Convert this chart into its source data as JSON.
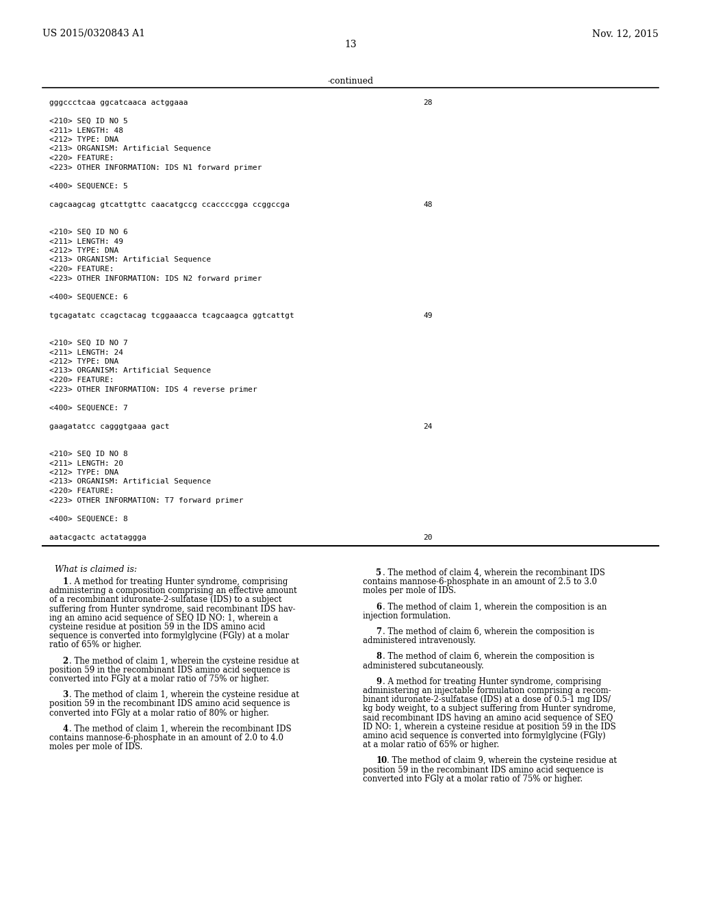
{
  "bg_color": "#ffffff",
  "header_left": "US 2015/0320843 A1",
  "header_right": "Nov. 12, 2015",
  "page_number": "13",
  "continued_label": "-continued",
  "mono_lines": [
    [
      "gggccctcaa ggcatcaaca actggaaa",
      "28"
    ],
    [
      "",
      ""
    ],
    [
      "<210> SEQ ID NO 5",
      ""
    ],
    [
      "<211> LENGTH: 48",
      ""
    ],
    [
      "<212> TYPE: DNA",
      ""
    ],
    [
      "<213> ORGANISM: Artificial Sequence",
      ""
    ],
    [
      "<220> FEATURE:",
      ""
    ],
    [
      "<223> OTHER INFORMATION: IDS N1 forward primer",
      ""
    ],
    [
      "",
      ""
    ],
    [
      "<400> SEQUENCE: 5",
      ""
    ],
    [
      "",
      ""
    ],
    [
      "cagcaagcag gtcattgttc caacatgccg ccaccccgga ccggccga",
      "48"
    ],
    [
      "",
      ""
    ],
    [
      "",
      ""
    ],
    [
      "<210> SEQ ID NO 6",
      ""
    ],
    [
      "<211> LENGTH: 49",
      ""
    ],
    [
      "<212> TYPE: DNA",
      ""
    ],
    [
      "<213> ORGANISM: Artificial Sequence",
      ""
    ],
    [
      "<220> FEATURE:",
      ""
    ],
    [
      "<223> OTHER INFORMATION: IDS N2 forward primer",
      ""
    ],
    [
      "",
      ""
    ],
    [
      "<400> SEQUENCE: 6",
      ""
    ],
    [
      "",
      ""
    ],
    [
      "tgcagatatc ccagctacag tcggaaacca tcagcaagca ggtcattgt",
      "49"
    ],
    [
      "",
      ""
    ],
    [
      "",
      ""
    ],
    [
      "<210> SEQ ID NO 7",
      ""
    ],
    [
      "<211> LENGTH: 24",
      ""
    ],
    [
      "<212> TYPE: DNA",
      ""
    ],
    [
      "<213> ORGANISM: Artificial Sequence",
      ""
    ],
    [
      "<220> FEATURE:",
      ""
    ],
    [
      "<223> OTHER INFORMATION: IDS 4 reverse primer",
      ""
    ],
    [
      "",
      ""
    ],
    [
      "<400> SEQUENCE: 7",
      ""
    ],
    [
      "",
      ""
    ],
    [
      "gaagatatcc cagggtgaaa gact",
      "24"
    ],
    [
      "",
      ""
    ],
    [
      "",
      ""
    ],
    [
      "<210> SEQ ID NO 8",
      ""
    ],
    [
      "<211> LENGTH: 20",
      ""
    ],
    [
      "<212> TYPE: DNA",
      ""
    ],
    [
      "<213> ORGANISM: Artificial Sequence",
      ""
    ],
    [
      "<220> FEATURE:",
      ""
    ],
    [
      "<223> OTHER INFORMATION: T7 forward primer",
      ""
    ],
    [
      "",
      ""
    ],
    [
      "<400> SEQUENCE: 8",
      ""
    ],
    [
      "",
      ""
    ],
    [
      "aatacgactc actataggga",
      "20"
    ]
  ],
  "left_claims": [
    {
      "num": "1",
      "indent_first": true,
      "lines": [
        "    1. A method for treating Hunter syndrome, comprising",
        "administering a composition comprising an effective amount",
        "of a recombinant iduronate-2-sulfatase (IDS) to a subject",
        "suffering from Hunter syndrome, said recombinant IDS hav-",
        "ing an amino acid sequence of SEQ ID NO: 1, wherein a",
        "cysteine residue at position 59 in the IDS amino acid",
        "sequence is converted into formylglycine (FGly) at a molar",
        "ratio of 65% or higher."
      ],
      "bold_num": "1"
    },
    {
      "num": "2",
      "lines": [
        "    2. The method of claim 1, wherein the cysteine residue at",
        "position 59 in the recombinant IDS amino acid sequence is",
        "converted into FGly at a molar ratio of 75% or higher."
      ],
      "bold_num": "2"
    },
    {
      "num": "3",
      "lines": [
        "    3. The method of claim 1, wherein the cysteine residue at",
        "position 59 in the recombinant IDS amino acid sequence is",
        "converted into FGly at a molar ratio of 80% or higher."
      ],
      "bold_num": "3"
    },
    {
      "num": "4",
      "lines": [
        "    4. The method of claim 1, wherein the recombinant IDS",
        "contains mannose-6-phosphate in an amount of 2.0 to 4.0",
        "moles per mole of IDS."
      ],
      "bold_num": "4"
    }
  ],
  "right_claims": [
    {
      "num": "5",
      "lines": [
        "    5. The method of claim 4, wherein the recombinant IDS",
        "contains mannose-6-phosphate in an amount of 2.5 to 3.0",
        "moles per mole of IDS."
      ],
      "bold_num": "5"
    },
    {
      "num": "6",
      "lines": [
        "    6. The method of claim 1, wherein the composition is an",
        "injection formulation."
      ],
      "bold_num": "6"
    },
    {
      "num": "7",
      "lines": [
        "    7. The method of claim 6, wherein the composition is",
        "administered intravenously."
      ],
      "bold_num": "7"
    },
    {
      "num": "8",
      "lines": [
        "    8. The method of claim 6, wherein the composition is",
        "administered subcutaneously."
      ],
      "bold_num": "8"
    },
    {
      "num": "9",
      "lines": [
        "    9. A method for treating Hunter syndrome, comprising",
        "administering an injectable formulation comprising a recom-",
        "binant iduronate-2-sulfatase (IDS) at a dose of 0.5-1 mg IDS/",
        "kg body weight, to a subject suffering from Hunter syndrome,",
        "said recombinant IDS having an amino acid sequence of SEQ",
        "ID NO: 1, wherein a cysteine residue at position 59 in the IDS",
        "amino acid sequence is converted into formylglycine (FGly)",
        "at a molar ratio of 65% or higher."
      ],
      "bold_num": "9"
    },
    {
      "num": "10",
      "lines": [
        "    10. The method of claim 9, wherein the cysteine residue at",
        "position 59 in the recombinant IDS amino acid sequence is",
        "converted into FGly at a molar ratio of 75% or higher."
      ],
      "bold_num": "10"
    }
  ]
}
